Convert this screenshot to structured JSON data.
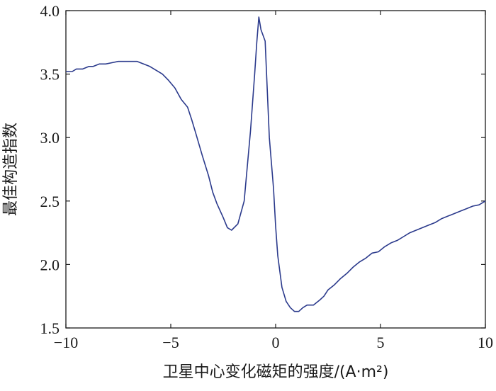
{
  "chart_data": {
    "type": "line",
    "title": "",
    "xlabel": "卫星中心变化磁矩的强度/(A·m²)",
    "ylabel": "最佳构造指数",
    "xlim": [
      -10,
      10
    ],
    "ylim": [
      1.5,
      4.0
    ],
    "xticks": [
      -10,
      -5,
      0,
      5,
      10
    ],
    "yticks": [
      1.5,
      2.0,
      2.5,
      3.0,
      3.5,
      4.0
    ],
    "xtick_labels": [
      "−10",
      "−5",
      "0",
      "5",
      "10"
    ],
    "ytick_labels": [
      "1.5",
      "2.0",
      "2.5",
      "3.0",
      "3.5",
      "4.0"
    ],
    "grid": false,
    "line_color": "#2b3a8c",
    "series": [
      {
        "x": [
          -10,
          -9.7,
          -9.5,
          -9.2,
          -8.9,
          -8.7,
          -8.4,
          -8.1,
          -7.8,
          -7.5,
          -7.2,
          -6.9,
          -6.6,
          -6.3,
          -6.0,
          -5.7,
          -5.4,
          -5.1,
          -4.8,
          -4.5,
          -4.2,
          -4.0,
          -3.8,
          -3.5,
          -3.2,
          -3.0,
          -2.8,
          -2.5,
          -2.3,
          -2.1,
          -1.8,
          -1.5,
          -1.2,
          -1.0,
          -0.9,
          -0.8,
          -0.7,
          -0.5,
          -0.3,
          -0.1,
          0,
          0.1,
          0.3,
          0.5,
          0.7,
          0.9,
          1.1,
          1.3,
          1.5,
          1.8,
          2.1,
          2.3,
          2.5,
          2.8,
          3.1,
          3.4,
          3.7,
          4.0,
          4.3,
          4.6,
          4.9,
          5.2,
          5.5,
          5.8,
          6.1,
          6.4,
          6.7,
          7.0,
          7.3,
          7.6,
          7.9,
          8.2,
          8.5,
          8.8,
          9.1,
          9.4,
          9.7,
          10
        ],
        "y": [
          3.52,
          3.52,
          3.54,
          3.54,
          3.56,
          3.56,
          3.58,
          3.58,
          3.59,
          3.6,
          3.6,
          3.6,
          3.6,
          3.58,
          3.56,
          3.53,
          3.5,
          3.45,
          3.39,
          3.3,
          3.24,
          3.14,
          3.03,
          2.86,
          2.7,
          2.57,
          2.48,
          2.37,
          2.29,
          2.27,
          2.32,
          2.5,
          3.05,
          3.5,
          3.75,
          3.95,
          3.85,
          3.76,
          3.0,
          2.6,
          2.3,
          2.07,
          1.82,
          1.71,
          1.66,
          1.63,
          1.63,
          1.66,
          1.68,
          1.68,
          1.72,
          1.75,
          1.8,
          1.84,
          1.89,
          1.93,
          1.98,
          2.02,
          2.05,
          2.09,
          2.1,
          2.14,
          2.17,
          2.19,
          2.22,
          2.25,
          2.27,
          2.29,
          2.31,
          2.33,
          2.36,
          2.38,
          2.4,
          2.42,
          2.44,
          2.46,
          2.47,
          2.5
        ]
      }
    ]
  }
}
